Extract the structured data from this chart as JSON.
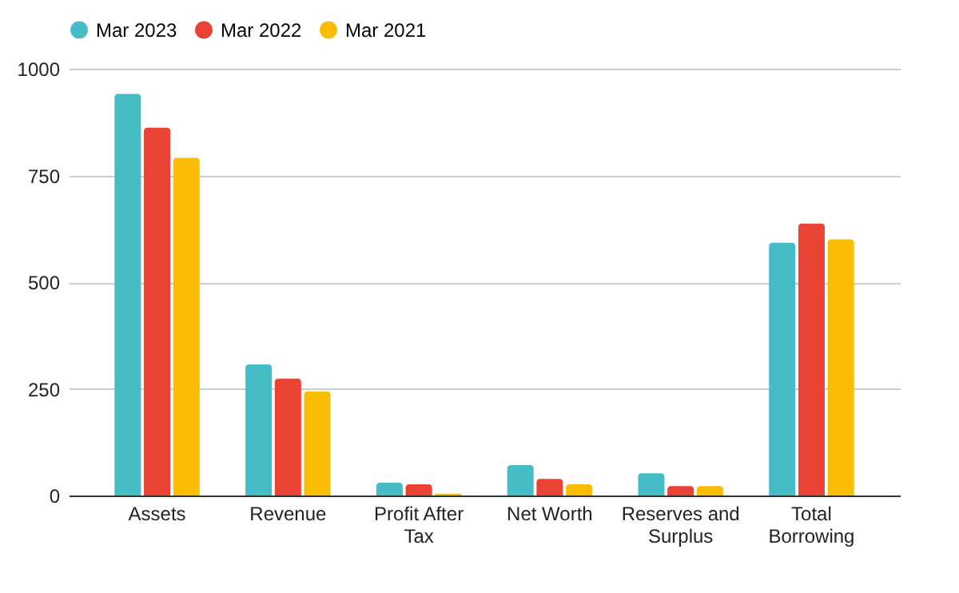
{
  "chart_data": {
    "type": "bar",
    "categories": [
      "Assets",
      "Revenue",
      "Profit After Tax",
      "Net Worth",
      "Reserves and Surplus",
      "Total Borrowing"
    ],
    "series": [
      {
        "name": "Mar 2023",
        "color": "#46bdc6",
        "values": [
          941,
          307,
          30,
          71,
          52,
          592
        ]
      },
      {
        "name": "Mar 2022",
        "color": "#ea4335",
        "values": [
          862,
          274,
          26,
          39,
          22,
          637
        ]
      },
      {
        "name": "Mar 2021",
        "color": "#fbbc04",
        "values": [
          791,
          244,
          4,
          26,
          22,
          600
        ]
      }
    ],
    "ylim": [
      0,
      1000
    ],
    "yticks": [
      0,
      250,
      500,
      750,
      1000
    ],
    "grid": "y",
    "legend": "top"
  }
}
